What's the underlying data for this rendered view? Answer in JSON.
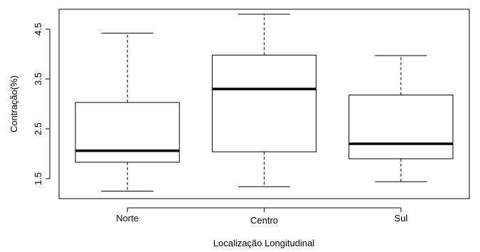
{
  "chart_data": {
    "type": "boxplot",
    "title": "",
    "xlabel": "Localização Longitudinal",
    "ylabel": "Contração(%)",
    "ylim": [
      1.1,
      4.9
    ],
    "yticks": [
      1.5,
      2.5,
      3.5,
      4.5
    ],
    "ytick_labels": [
      "1.5",
      "2.5",
      "3.5",
      "4.5"
    ],
    "grid": false,
    "legend": "none",
    "categories": [
      "Norte",
      "Centro",
      "Sul"
    ],
    "boxes": [
      {
        "category": "Norte",
        "whisker_low": 1.25,
        "q1": 1.83,
        "median": 2.06,
        "q3": 3.03,
        "whisker_high": 4.42
      },
      {
        "category": "Centro",
        "whisker_low": 1.34,
        "q1": 2.04,
        "median": 3.3,
        "q3": 3.98,
        "whisker_high": 4.8
      },
      {
        "category": "Sul",
        "whisker_low": 1.44,
        "q1": 1.9,
        "median": 2.2,
        "q3": 3.18,
        "whisker_high": 3.97
      }
    ]
  }
}
